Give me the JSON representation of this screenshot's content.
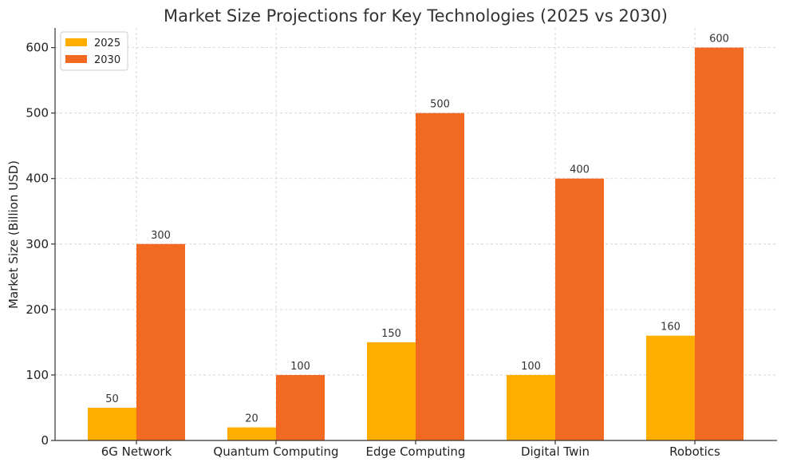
{
  "chart_data": {
    "type": "bar",
    "title": "Market Size Projections for Key Technologies (2025 vs 2030)",
    "xlabel": "",
    "ylabel": "Market Size (Billion USD)",
    "categories": [
      "6G Network",
      "Quantum Computing",
      "Edge Computing",
      "Digital Twin",
      "Robotics"
    ],
    "series": [
      {
        "name": "2025",
        "color": "#ffae00",
        "values": [
          50,
          20,
          150,
          100,
          160
        ]
      },
      {
        "name": "2030",
        "color": "#f26922",
        "values": [
          300,
          100,
          500,
          400,
          600
        ]
      }
    ],
    "ylim": [
      0,
      630
    ],
    "yticks": [
      0,
      100,
      200,
      300,
      400,
      500,
      600
    ],
    "grid": true,
    "legend_position": "top-left"
  }
}
